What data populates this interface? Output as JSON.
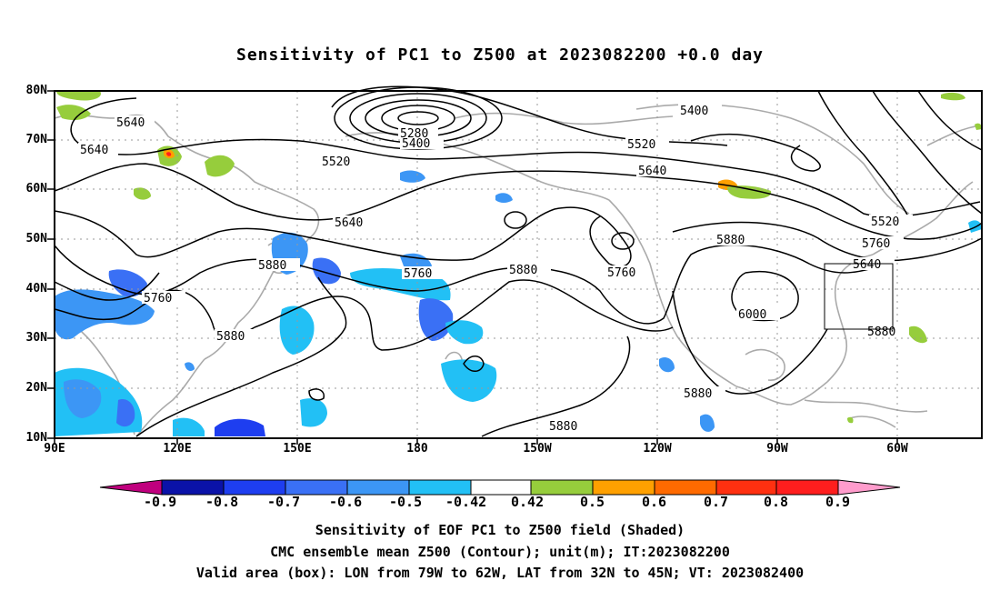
{
  "title": "Sensitivity of PC1 to Z500 at 2023082200 +0.0 day",
  "lat_labels": [
    "80N",
    "70N",
    "60N",
    "50N",
    "40N",
    "30N",
    "20N",
    "10N"
  ],
  "lon_labels": [
    "90E",
    "120E",
    "150E",
    "180",
    "150W",
    "120W",
    "90W",
    "60W"
  ],
  "contour_labels": [
    "5640",
    "5640",
    "5520",
    "5280",
    "5400",
    "5400",
    "5520",
    "5640",
    "5520",
    "5640",
    "5760",
    "5640",
    "5880",
    "5760",
    "5880",
    "5760",
    "5880",
    "6000",
    "5880",
    "5880",
    "5880",
    "5760",
    "5880"
  ],
  "colorbar": {
    "labels": [
      "-0.9",
      "-0.8",
      "-0.7",
      "-0.6",
      "-0.5",
      "-0.42",
      "0.42",
      "0.5",
      "0.6",
      "0.7",
      "0.8",
      "0.9"
    ],
    "colors": [
      "#c0007e",
      "#0a12a8",
      "#1e3ef0",
      "#3a70f5",
      "#3c96f5",
      "#22c0f5",
      "#ffffff",
      "#96cd3c",
      "#ffa000",
      "#ff6a00",
      "#ff3010",
      "#ff1e1e",
      "#ff9ccc"
    ]
  },
  "captions": {
    "line1": "Sensitivity of EOF PC1 to Z500 field (Shaded)",
    "line2": "CMC ensemble mean Z500 (Contour); unit(m); IT:2023082200",
    "line3": "Valid area (box): LON from 79W to 62W, LAT from 32N to 45N; VT: 2023082400"
  }
}
